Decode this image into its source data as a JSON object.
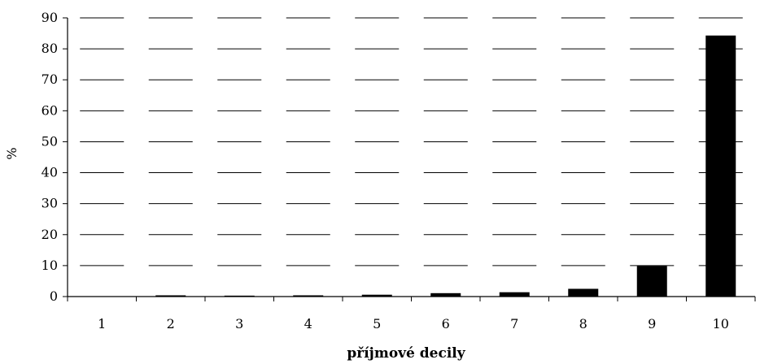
{
  "chart_data": {
    "type": "bar",
    "title": "",
    "xlabel": "příjmové decily",
    "ylabel": "%",
    "ylim": [
      0,
      90
    ],
    "yticks": [
      0,
      10,
      20,
      30,
      40,
      50,
      60,
      70,
      80,
      90
    ],
    "categories": [
      "1",
      "2",
      "3",
      "4",
      "5",
      "6",
      "7",
      "8",
      "9",
      "10"
    ],
    "values": [
      0.1,
      0.4,
      0.3,
      0.4,
      0.6,
      1.1,
      1.4,
      2.5,
      9.9,
      84.3
    ],
    "bar_color": "#000000",
    "grid": "dashed horizontal",
    "legend": "none"
  }
}
